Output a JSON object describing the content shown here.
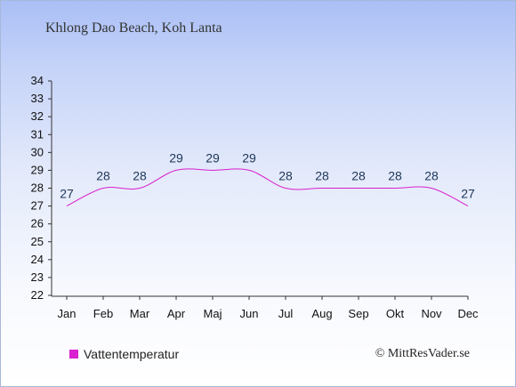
{
  "page": {
    "title": "Khlong Dao Beach, Koh Lanta",
    "credit": "© MittResVader.se",
    "colors": {
      "series": "#d91fcf",
      "axis": "#333333",
      "label": "#1d3557"
    }
  },
  "chart_data": {
    "type": "line",
    "title": "Khlong Dao Beach, Koh Lanta",
    "xlabel": "",
    "ylabel": "",
    "categories": [
      "Jan",
      "Feb",
      "Mar",
      "Apr",
      "Maj",
      "Jun",
      "Jul",
      "Aug",
      "Sep",
      "Okt",
      "Nov",
      "Dec"
    ],
    "series": [
      {
        "name": "Vattentemperatur",
        "values": [
          27,
          28,
          28,
          29,
          29,
          29,
          28,
          28,
          28,
          28,
          28,
          27
        ]
      }
    ],
    "ylim": [
      22,
      34
    ],
    "yticks": [
      22,
      23,
      24,
      25,
      26,
      27,
      28,
      29,
      30,
      31,
      32,
      33,
      34
    ],
    "grid": false,
    "legend": "bottom-left"
  }
}
